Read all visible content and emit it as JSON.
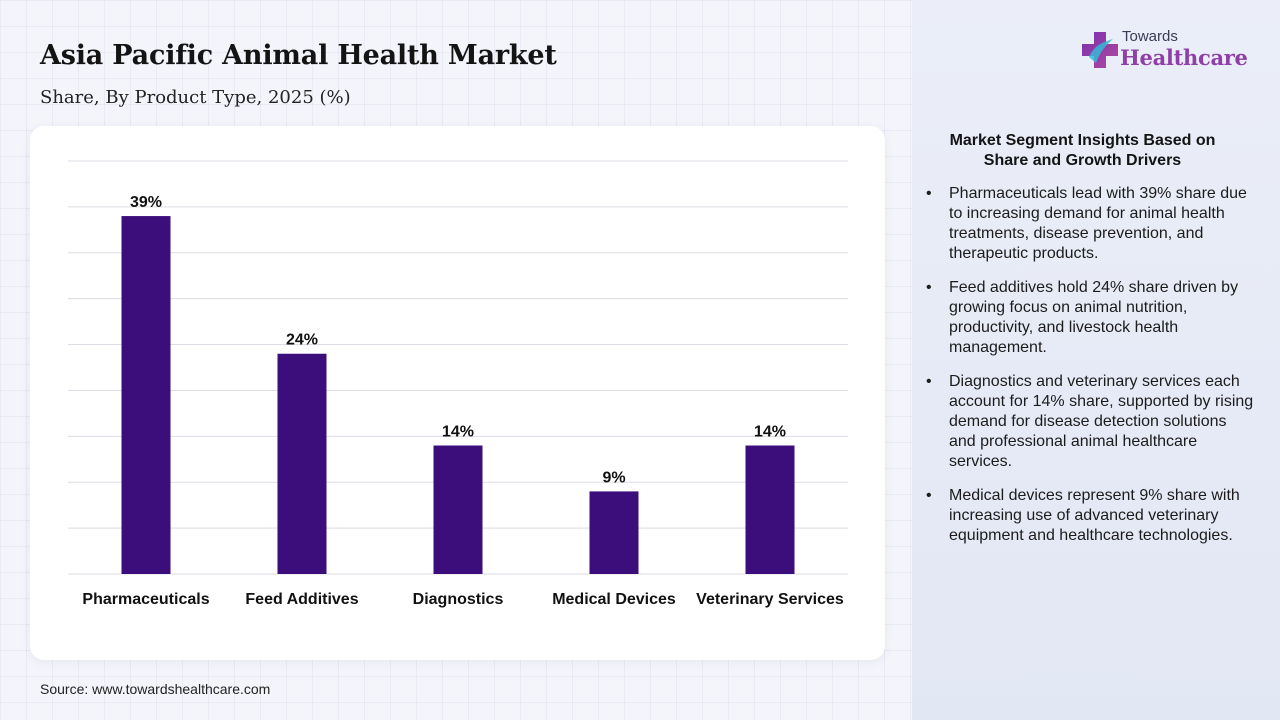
{
  "header": {
    "title": "Asia Pacific Animal Health Market",
    "subtitle": "Share, By Product Type, 2025 (%)"
  },
  "source": "Source: www.towardshealthcare.com",
  "logo": {
    "top_text": "Towards",
    "brand_text": "Healthcare",
    "icon": "medical-cross-icon"
  },
  "insights": {
    "title": "Market Segment Insights Based on Share and Growth Drivers",
    "items": [
      "Pharmaceuticals lead with 39% share due to increasing demand for animal health treatments, disease prevention, and therapeutic products.",
      "Feed additives hold 24% share driven by growing focus on animal nutrition, productivity, and livestock health management.",
      "Diagnostics and veterinary services each account for 14% share, supported by rising demand for disease detection solutions and professional animal healthcare services.",
      "Medical devices represent 9% share with increasing use of advanced veterinary equipment and healthcare technologies."
    ]
  },
  "colors": {
    "bar": "#3c0e7c",
    "brand": "#8e3fa8",
    "grid": "#dcdce4"
  },
  "chart_data": {
    "type": "bar",
    "categories": [
      "Pharmaceuticals",
      "Feed Additives",
      "Diagnostics",
      "Medical Devices",
      "Veterinary Services"
    ],
    "values": [
      39,
      24,
      14,
      9,
      14
    ],
    "data_labels": [
      "39%",
      "24%",
      "14%",
      "9%",
      "14%"
    ],
    "ylim": [
      0,
      45
    ],
    "grid": true,
    "xlabel": "",
    "ylabel": ""
  }
}
